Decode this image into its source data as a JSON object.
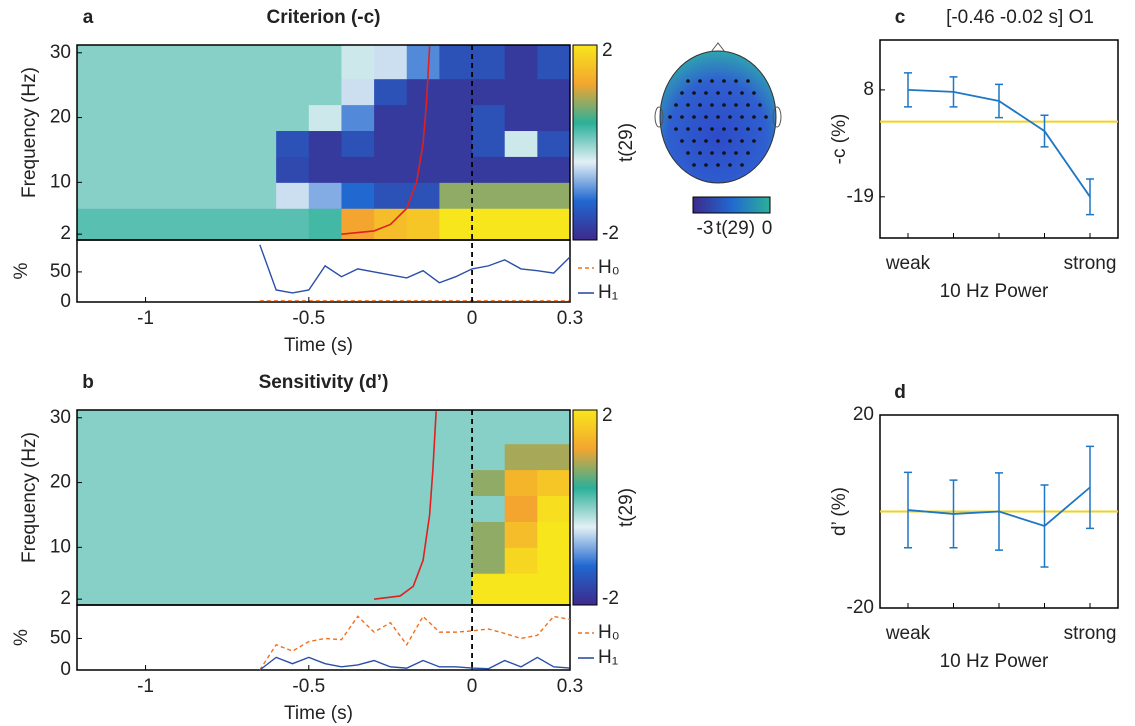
{
  "chart_data": [
    {
      "type": "heatmap",
      "panel": "a",
      "title": "Criterion (-c)",
      "ylabel": "Frequency (Hz)",
      "x": [
        -1.15,
        -1.05,
        -0.95,
        -0.85,
        -0.75,
        -0.65,
        -0.55,
        -0.45,
        -0.35,
        -0.25,
        -0.15,
        -0.05,
        0.05,
        0.15,
        0.25
      ],
      "y": [
        4,
        8,
        12,
        16,
        20,
        24,
        28
      ],
      "z": [
        [
          0.2,
          0.2,
          0.2,
          0.2,
          0.2,
          0.2,
          0.2,
          0.3,
          1.2,
          1.5,
          1.6,
          2,
          2,
          2,
          2
        ],
        [
          0,
          0,
          0,
          0,
          0,
          0,
          -0.5,
          -0.8,
          -1.2,
          -1.5,
          -1.5,
          0.8,
          0.8,
          0.8,
          0.8
        ],
        [
          0,
          0,
          0,
          0,
          0,
          0,
          -1.6,
          -1.8,
          -1.8,
          -1.8,
          -1.8,
          -1.8,
          -1.8,
          -1.8,
          -1.8
        ],
        [
          0,
          0,
          0,
          0,
          0,
          0,
          -1.5,
          -1.8,
          -1.5,
          -1.8,
          -1.8,
          -1.8,
          -1.5,
          -0.3,
          -1.5
        ],
        [
          0,
          0,
          0,
          0,
          0,
          0,
          0,
          -0.3,
          -1,
          -1.8,
          -1.8,
          -1.8,
          -1.5,
          -1.8,
          -1.8
        ],
        [
          0,
          0,
          0,
          0,
          0,
          0,
          0,
          0,
          -0.5,
          -1.5,
          -1.8,
          -1.8,
          -1.8,
          -1.8,
          -1.8
        ],
        [
          0,
          0,
          0,
          0,
          0,
          0,
          0,
          0,
          -0.3,
          -0.5,
          -1,
          -1.5,
          -1.5,
          -1.8,
          -1.5
        ]
      ],
      "xlim": [
        -1.21,
        0.3
      ],
      "xticks": [
        -1,
        -0.5,
        0,
        0.3
      ],
      "ylim": [
        1.1,
        31.2
      ],
      "yticks": [
        2,
        10,
        20,
        30
      ],
      "clim": [
        -2,
        2
      ],
      "cticks": [
        -2,
        2
      ],
      "colorbar_label": "t(29)",
      "colormap": [
        "#3d2a8c",
        "#2168d0",
        "#e3f0f5",
        "#2bb09a",
        "#f3a530",
        "#f8e61c"
      ],
      "curve": {
        "color": "#e02020",
        "x": [
          -0.4,
          -0.3,
          -0.25,
          -0.2,
          -0.17,
          -0.15,
          -0.14,
          -0.13
        ],
        "y": [
          2,
          2.5,
          3.5,
          6,
          10,
          16,
          22,
          31
        ]
      },
      "subplot": {
        "ylabel": "%",
        "xlabel": "Time (s)",
        "ylim": [
          0,
          103
        ],
        "yticks": [
          0,
          50
        ],
        "x": [
          -0.65,
          -0.6,
          -0.55,
          -0.5,
          -0.45,
          -0.4,
          -0.35,
          -0.3,
          -0.25,
          -0.2,
          -0.15,
          -0.1,
          -0.05,
          0,
          0.05,
          0.1,
          0.15,
          0.2,
          0.25,
          0.3
        ],
        "series": [
          {
            "name": "H₀",
            "color": "#f07020",
            "dash": true,
            "values": [
              2,
              2,
              2,
              2,
              2,
              2,
              2,
              2,
              2,
              2,
              2,
              2,
              2,
              2,
              2,
              2,
              2,
              2,
              2,
              2
            ]
          },
          {
            "name": "H₁",
            "color": "#2a4fa8",
            "dash": false,
            "values": [
              95,
              20,
              15,
              20,
              60,
              42,
              55,
              50,
              45,
              40,
              52,
              32,
              42,
              55,
              60,
              70,
              55,
              52,
              48,
              75
            ]
          }
        ]
      }
    },
    {
      "type": "heatmap",
      "panel": "b",
      "title": "Sensitivity (d’)",
      "ylabel": "Frequency (Hz)",
      "x": [
        -1.15,
        -1.05,
        -0.95,
        -0.85,
        -0.75,
        -0.65,
        -0.55,
        -0.45,
        -0.35,
        -0.25,
        -0.15,
        -0.05,
        0.05,
        0.15,
        0.25
      ],
      "y": [
        4,
        8,
        12,
        16,
        20,
        24,
        28
      ],
      "z": [
        [
          0,
          0,
          0,
          0,
          0,
          0,
          0,
          0,
          0,
          0,
          0,
          0,
          2,
          2,
          2
        ],
        [
          0,
          0,
          0,
          0,
          0,
          0,
          0,
          0,
          0,
          0,
          0,
          0,
          0.8,
          1.8,
          2
        ],
        [
          0,
          0,
          0,
          0,
          0,
          0,
          0,
          0,
          0,
          0,
          0,
          0,
          0.8,
          1.5,
          2
        ],
        [
          0,
          0,
          0,
          0,
          0,
          0,
          0,
          0,
          0,
          0,
          0,
          0,
          0,
          1.2,
          1.9
        ],
        [
          0,
          0,
          0,
          0,
          0,
          0,
          0,
          0,
          0,
          0,
          0,
          0,
          0.8,
          1.4,
          1.6
        ],
        [
          0,
          0,
          0,
          0,
          0,
          0,
          0,
          0,
          0,
          0,
          0,
          0,
          0,
          0.9,
          0.9
        ],
        [
          0,
          0,
          0,
          0,
          0,
          0,
          0,
          0,
          0,
          0,
          0,
          0,
          0,
          0,
          0
        ]
      ],
      "xlim": [
        -1.21,
        0.3
      ],
      "xticks": [
        -1,
        -0.5,
        0,
        0.3
      ],
      "ylim": [
        1.1,
        31.2
      ],
      "yticks": [
        2,
        10,
        20,
        30
      ],
      "clim": [
        -2,
        2
      ],
      "cticks": [
        -2,
        2
      ],
      "colorbar_label": "t(29)",
      "colormap": [
        "#3d2a8c",
        "#2168d0",
        "#e3f0f5",
        "#2bb09a",
        "#f3a530",
        "#f8e61c"
      ],
      "curve": {
        "color": "#e02020",
        "x": [
          -0.3,
          -0.22,
          -0.18,
          -0.15,
          -0.13,
          -0.12,
          -0.11
        ],
        "y": [
          2,
          2.5,
          4,
          8,
          15,
          22,
          31
        ]
      },
      "subplot": {
        "ylabel": "%",
        "xlabel": "Time (s)",
        "ylim": [
          0,
          103
        ],
        "yticks": [
          0,
          50
        ],
        "x": [
          -0.65,
          -0.6,
          -0.55,
          -0.5,
          -0.45,
          -0.4,
          -0.35,
          -0.3,
          -0.25,
          -0.2,
          -0.15,
          -0.1,
          -0.05,
          0,
          0.05,
          0.1,
          0.15,
          0.2,
          0.25,
          0.3
        ],
        "series": [
          {
            "name": "H₀",
            "color": "#f07020",
            "dash": true,
            "values": [
              0,
              40,
              30,
              45,
              50,
              48,
              85,
              60,
              75,
              40,
              85,
              60,
              60,
              62,
              65,
              58,
              50,
              55,
              85,
              80
            ]
          },
          {
            "name": "H₁",
            "color": "#2a4fa8",
            "dash": false,
            "values": [
              0,
              20,
              10,
              20,
              10,
              5,
              8,
              15,
              5,
              3,
              15,
              5,
              5,
              3,
              2,
              15,
              5,
              20,
              5,
              3
            ]
          }
        ]
      }
    },
    {
      "type": "topomap",
      "clim": [
        -3,
        0
      ],
      "cticks": [
        -3,
        0
      ],
      "colorbar_label": "t(29)",
      "colormap": [
        "#3d2a8c",
        "#2168d0",
        "#2bb09a"
      ]
    },
    {
      "type": "line",
      "panel": "c",
      "title": "[-0.46 -0.02 s] O1",
      "xlabel": "10 Hz Power",
      "ylabel": "-c (%)",
      "categories": [
        "weak",
        null,
        null,
        null,
        "strong"
      ],
      "values": [
        8.0,
        7.5,
        5.2,
        -2.4,
        -19
      ],
      "errors": [
        4.3,
        3.8,
        4.2,
        4,
        4.5
      ],
      "color": "#1f77c4",
      "reference_line": 0,
      "reference_color": "#f2d21b",
      "ylim": [
        -29.4,
        20.6
      ],
      "yticks": [
        8,
        -19
      ]
    },
    {
      "type": "line",
      "panel": "d",
      "xlabel": "10 Hz Power",
      "ylabel": "d’ (%)",
      "categories": [
        "weak",
        null,
        null,
        null,
        "strong"
      ],
      "values": [
        0.3,
        -0.5,
        0,
        -3,
        5
      ],
      "errors": [
        7.8,
        7,
        8,
        8.5,
        8.5
      ],
      "color": "#1f77c4",
      "reference_line": 0,
      "reference_color": "#f2d21b",
      "ylim": [
        -20,
        20
      ],
      "yticks": [
        20,
        -20
      ]
    }
  ]
}
